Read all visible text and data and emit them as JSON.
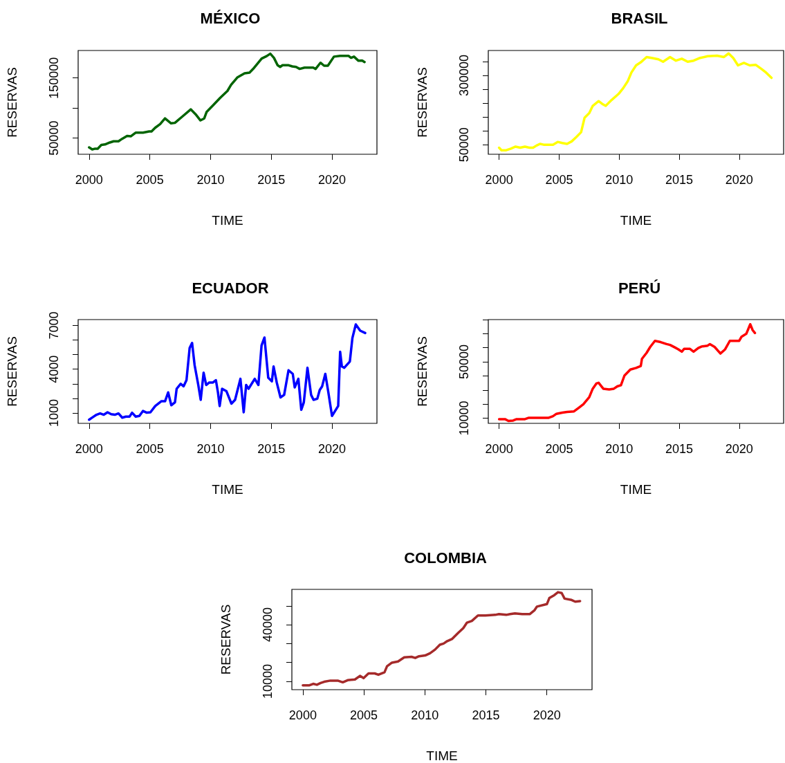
{
  "chart_data": [
    {
      "type": "line",
      "title": "MÉXICO",
      "xlabel": "TIME",
      "ylabel": "RESERVAS",
      "color": "#006400",
      "xlim": [
        1999.1,
        2023.7
      ],
      "ylim": [
        23100,
        195700
      ],
      "xticks": [
        2000,
        2005,
        2010,
        2015,
        2020
      ],
      "yticks": [
        50000,
        {
          "value": 100000,
          "label": null
        },
        150000
      ],
      "x": [
        2000.0,
        2000.26,
        2000.5,
        2000.71,
        2001.01,
        2001.31,
        2001.71,
        2002.02,
        2002.42,
        2002.72,
        2003.13,
        2003.43,
        2003.83,
        2004.44,
        2004.94,
        2005.14,
        2005.44,
        2005.85,
        2006.25,
        2006.75,
        2007.06,
        2007.66,
        2008.37,
        2008.77,
        2009.17,
        2009.48,
        2009.68,
        2010.18,
        2010.79,
        2011.39,
        2011.69,
        2012.2,
        2012.8,
        2013.21,
        2013.51,
        2014.21,
        2014.62,
        2014.92,
        2015.22,
        2015.52,
        2015.73,
        2015.93,
        2016.43,
        2016.73,
        2017.04,
        2017.34,
        2017.74,
        2018.45,
        2018.65,
        2019.05,
        2019.35,
        2019.66,
        2020.16,
        2020.67,
        2021.37,
        2021.57,
        2021.81,
        2022.18,
        2022.48,
        2022.68
      ],
      "values": [
        34500,
        31200,
        32400,
        32400,
        38600,
        39400,
        42700,
        44700,
        44700,
        48800,
        53700,
        52900,
        59000,
        59000,
        61000,
        61000,
        67100,
        73300,
        82700,
        74500,
        75300,
        85500,
        97800,
        89600,
        79400,
        82700,
        93700,
        103900,
        116900,
        128400,
        138600,
        150800,
        157800,
        159000,
        165100,
        182300,
        186300,
        190400,
        183500,
        171200,
        168400,
        171200,
        171200,
        169200,
        168400,
        165100,
        167200,
        167200,
        165100,
        175300,
        170400,
        170400,
        185500,
        186700,
        186700,
        183500,
        185500,
        178600,
        179000,
        176500
      ]
    },
    {
      "type": "line",
      "title": "BRASIL",
      "xlabel": "TIME",
      "ylabel": "RESERVAS",
      "color": "#ffff00",
      "xlim": [
        1999.1,
        2023.7
      ],
      "ylim": [
        15500,
        389600
      ],
      "xticks": [
        2000,
        2005,
        2010,
        2015,
        2020
      ],
      "yticks": [
        50000,
        {
          "value": 100000,
          "label": null
        },
        {
          "value": 150000,
          "label": null
        },
        {
          "value": 200000,
          "label": null
        },
        {
          "value": 250000,
          "label": null
        },
        300000,
        {
          "value": 350000,
          "label": null
        }
      ],
      "x": [
        2000.0,
        2000.2,
        2000.59,
        2000.98,
        2001.37,
        2001.76,
        2002.15,
        2002.54,
        2002.83,
        2003.12,
        2003.41,
        2003.71,
        2004.49,
        2004.88,
        2005.27,
        2005.66,
        2006.05,
        2006.44,
        2006.83,
        2007.12,
        2007.51,
        2007.8,
        2008.29,
        2008.59,
        2008.88,
        2009.37,
        2009.95,
        2010.34,
        2010.73,
        2011.02,
        2011.41,
        2011.8,
        2012.29,
        2012.78,
        2013.27,
        2013.66,
        2014.24,
        2014.73,
        2015.22,
        2015.71,
        2016.2,
        2016.68,
        2017.37,
        2018.15,
        2018.73,
        2019.12,
        2019.51,
        2019.9,
        2020.39,
        2020.88,
        2021.37,
        2021.85,
        2022.24,
        2022.69
      ],
      "values": [
        39000,
        30000,
        30000,
        36000,
        43000,
        39000,
        43000,
        39000,
        39000,
        47000,
        53000,
        50000,
        50000,
        60000,
        56000,
        53000,
        62000,
        78000,
        95000,
        147000,
        164000,
        190000,
        207000,
        197000,
        190000,
        211000,
        233000,
        254000,
        280000,
        310000,
        336000,
        347000,
        366000,
        362000,
        358000,
        349000,
        366000,
        353000,
        360000,
        349000,
        353000,
        362000,
        369000,
        371000,
        366000,
        379000,
        362000,
        336000,
        345000,
        336000,
        338000,
        323000,
        310000,
        291000
      ]
    },
    {
      "type": "line",
      "title": "ECUADOR",
      "xlabel": "TIME",
      "ylabel": "RESERVAS",
      "color": "#0000ff",
      "xlim": [
        1999.1,
        2023.7
      ],
      "ylim": [
        290,
        7400
      ],
      "xticks": [
        2000,
        2005,
        2010,
        2015,
        2020
      ],
      "yticks": [
        1000,
        {
          "value": 2000,
          "label": null
        },
        {
          "value": 3000,
          "label": null
        },
        4000,
        {
          "value": 5000,
          "label": null
        },
        {
          "value": 6000,
          "label": null
        },
        7000
      ],
      "x": [
        2000.0,
        2000.3,
        2000.61,
        2000.91,
        2001.21,
        2001.52,
        2001.82,
        2002.12,
        2002.42,
        2002.73,
        2003.03,
        2003.33,
        2003.54,
        2003.84,
        2004.14,
        2004.44,
        2004.75,
        2005.05,
        2005.45,
        2005.96,
        2006.26,
        2006.51,
        2006.77,
        2007.07,
        2007.21,
        2007.54,
        2007.78,
        2008.02,
        2008.28,
        2008.48,
        2008.69,
        2008.99,
        2009.19,
        2009.43,
        2009.64,
        2009.9,
        2010.2,
        2010.44,
        2010.61,
        2010.75,
        2010.95,
        2011.31,
        2011.72,
        2012.02,
        2012.46,
        2012.73,
        2012.93,
        2013.13,
        2013.64,
        2013.94,
        2014.2,
        2014.44,
        2014.75,
        2015.05,
        2015.19,
        2015.45,
        2015.76,
        2016.06,
        2016.42,
        2016.77,
        2016.93,
        2017.23,
        2017.47,
        2017.68,
        2017.98,
        2018.28,
        2018.48,
        2018.79,
        2018.99,
        2019.19,
        2019.45,
        2019.7,
        2020.0,
        2020.51,
        2020.67,
        2020.81,
        2021.01,
        2021.47,
        2021.68,
        2021.96,
        2022.32,
        2022.73
      ],
      "values": [
        540,
        710,
        880,
        970,
        880,
        1050,
        920,
        880,
        970,
        680,
        750,
        750,
        1020,
        750,
        800,
        1140,
        1020,
        1050,
        1480,
        1810,
        1810,
        2410,
        1530,
        1730,
        2660,
        3000,
        2830,
        3250,
        5460,
        5800,
        4270,
        2920,
        1900,
        3760,
        2920,
        3090,
        3090,
        3250,
        2410,
        1480,
        2660,
        2490,
        1640,
        1900,
        3340,
        1050,
        2920,
        2660,
        3340,
        2920,
        5630,
        6170,
        3420,
        3170,
        4190,
        3090,
        2070,
        2240,
        3930,
        3680,
        2750,
        3340,
        1220,
        1730,
        4100,
        2240,
        1900,
        1980,
        2580,
        2830,
        3680,
        2410,
        800,
        1480,
        5200,
        4190,
        4100,
        4530,
        6140,
        7070,
        6640,
        6480
      ]
    },
    {
      "type": "line",
      "title": "PERÚ",
      "xlabel": "TIME",
      "ylabel": "RESERVAS",
      "color": "#ff0000",
      "xlim": [
        1999.1,
        2023.7
      ],
      "ylim": [
        6300,
        80000
      ],
      "xticks": [
        2000,
        2005,
        2010,
        2015,
        2020
      ],
      "yticks": [
        10000,
        {
          "value": 20000,
          "label": null
        },
        {
          "value": 30000,
          "label": null
        },
        {
          "value": 40000,
          "label": null
        },
        50000,
        {
          "value": 60000,
          "label": null
        },
        {
          "value": 70000,
          "label": null
        },
        {
          "value": 80000,
          "label": null
        }
      ],
      "x": [
        2000.0,
        2000.49,
        2000.78,
        2001.17,
        2001.46,
        2002.15,
        2002.44,
        2003.32,
        2004.1,
        2004.49,
        2004.78,
        2005.27,
        2005.66,
        2006.24,
        2006.63,
        2007.02,
        2007.51,
        2007.8,
        2008.1,
        2008.29,
        2008.68,
        2009.17,
        2009.56,
        2009.85,
        2010.15,
        2010.44,
        2010.93,
        2011.41,
        2011.8,
        2011.9,
        2012.29,
        2012.59,
        2012.98,
        2013.46,
        2013.95,
        2014.24,
        2014.63,
        2014.93,
        2015.22,
        2015.41,
        2015.9,
        2016.2,
        2016.59,
        2016.88,
        2017.37,
        2017.56,
        2017.95,
        2018.44,
        2018.83,
        2019.22,
        2019.61,
        2020.0,
        2020.2,
        2020.59,
        2020.92,
        2021.12,
        2021.31
      ],
      "values": [
        9300,
        9300,
        8000,
        8300,
        9300,
        9300,
        10200,
        10200,
        10200,
        11400,
        13100,
        13900,
        14400,
        14800,
        17300,
        19900,
        24900,
        30900,
        34600,
        35100,
        30900,
        30400,
        30900,
        32600,
        33400,
        40200,
        44500,
        45700,
        47000,
        52100,
        56400,
        60600,
        64900,
        64000,
        62600,
        62000,
        60300,
        58900,
        57200,
        59200,
        59200,
        57200,
        59800,
        60900,
        61500,
        62600,
        60600,
        55900,
        58900,
        64900,
        64900,
        64900,
        67900,
        69900,
        76700,
        72500,
        70500
      ]
    },
    {
      "type": "line",
      "title": "COLOMBIA",
      "xlabel": "TIME",
      "ylabel": "RESERVAS",
      "color": "#a52a2a",
      "xlim": [
        1999.1,
        2023.7
      ],
      "ylim": [
        5600,
        58700
      ],
      "xticks": [
        2000,
        2005,
        2010,
        2015,
        2020
      ],
      "yticks": [
        10000,
        {
          "value": 20000,
          "label": null
        },
        {
          "value": 30000,
          "label": null
        },
        40000,
        {
          "value": 50000,
          "label": null
        }
      ],
      "x": [
        2000.0,
        2000.54,
        2000.85,
        2001.15,
        2001.45,
        2001.75,
        2002.26,
        2002.86,
        2003.27,
        2003.67,
        2004.27,
        2004.68,
        2004.98,
        2005.38,
        2005.89,
        2006.19,
        2006.69,
        2006.9,
        2007.3,
        2007.8,
        2008.31,
        2008.91,
        2009.21,
        2009.52,
        2010.02,
        2010.42,
        2010.83,
        2011.23,
        2011.53,
        2011.83,
        2012.24,
        2012.74,
        2013.15,
        2013.45,
        2013.85,
        2014.35,
        2014.96,
        2015.77,
        2016.07,
        2016.67,
        2016.98,
        2017.38,
        2017.98,
        2018.59,
        2018.99,
        2019.19,
        2020.0,
        2020.2,
        2020.6,
        2020.91,
        2021.21,
        2021.45,
        2022.02,
        2022.32,
        2022.72
      ],
      "values": [
        7900,
        7900,
        8700,
        8200,
        9100,
        9800,
        10400,
        10400,
        9500,
        10600,
        11000,
        12900,
        11700,
        14200,
        14200,
        13500,
        14800,
        18000,
        19900,
        20500,
        22700,
        23000,
        22400,
        23300,
        23700,
        24900,
        26800,
        29400,
        30000,
        31300,
        32500,
        35700,
        38200,
        41100,
        42000,
        44900,
        44900,
        45200,
        45600,
        45200,
        45600,
        46000,
        45600,
        45600,
        47700,
        49600,
        50900,
        54100,
        55600,
        57200,
        56800,
        53800,
        53100,
        52200,
        52500
      ]
    }
  ]
}
